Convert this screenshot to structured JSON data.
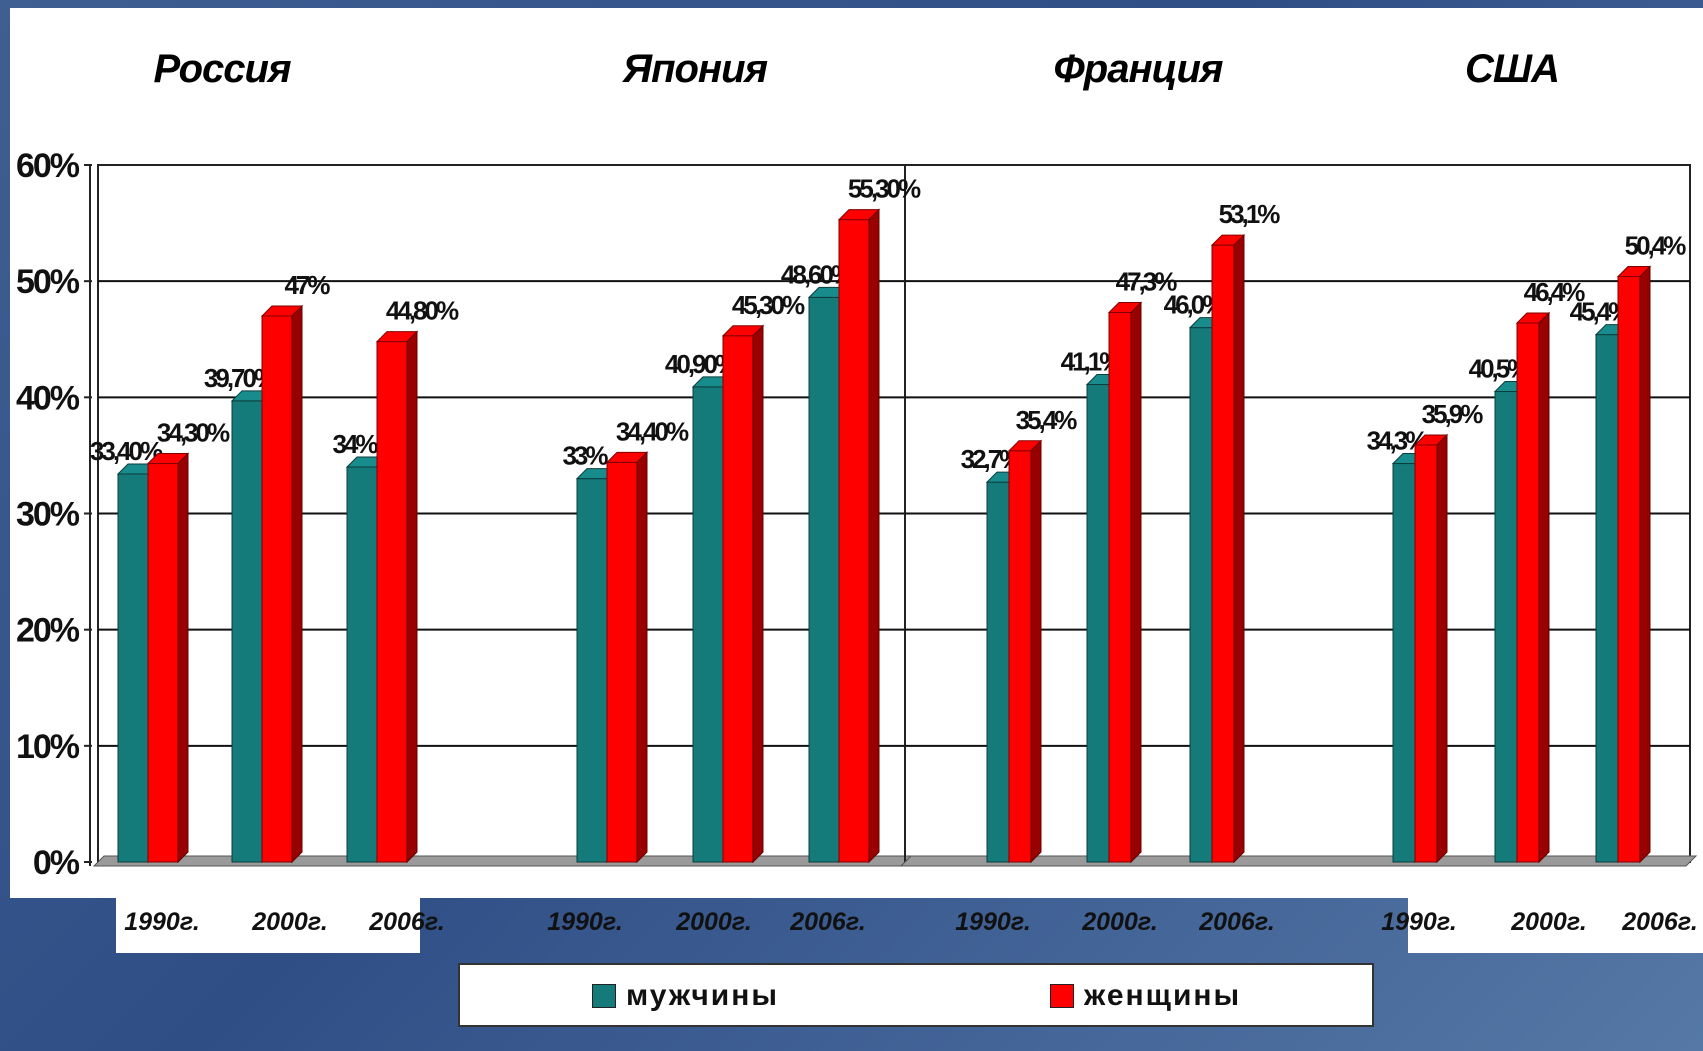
{
  "chart_data": {
    "type": "bar",
    "y_ticks": [
      "0%",
      "10%",
      "20%",
      "30%",
      "40%",
      "50%",
      "60%"
    ],
    "ylim": [
      0,
      60
    ],
    "grid": true,
    "legend_position": "bottom-center",
    "colors": {
      "men": "#157a7a",
      "women": "#ff0000"
    },
    "series_names": {
      "men": "мужчины",
      "women": "женщины"
    },
    "panels": [
      {
        "title": "Россия",
        "categories": [
          "1990г.",
          "2000г.",
          "2006г."
        ],
        "men": [
          33.4,
          39.7,
          34
        ],
        "women": [
          34.3,
          47,
          44.8
        ],
        "men_labels": [
          "33,40%",
          "39,70%",
          "34%"
        ],
        "women_labels": [
          "34,30%",
          "47%",
          "44,80%"
        ]
      },
      {
        "title": "Япония",
        "categories": [
          "1990г.",
          "2000г.",
          "2006г."
        ],
        "men": [
          33,
          40.9,
          48.6
        ],
        "women": [
          34.4,
          45.3,
          55.3
        ],
        "men_labels": [
          "33%",
          "40,90%",
          "48,60%"
        ],
        "women_labels": [
          "34,40%",
          "45,30%",
          "55,30%"
        ]
      },
      {
        "title": "Франция",
        "categories": [
          "1990г.",
          "2000г.",
          "2006г."
        ],
        "men": [
          32.7,
          41.1,
          46.0
        ],
        "women": [
          35.4,
          47.3,
          53.1
        ],
        "men_labels": [
          "32,7%",
          "41,1%",
          "46,0%"
        ],
        "women_labels": [
          "35,4%",
          "47,3%",
          "53,1%"
        ]
      },
      {
        "title": "США",
        "categories": [
          "1990г.",
          "2000г.",
          "2006г."
        ],
        "men": [
          34.3,
          40.5,
          45.4
        ],
        "women": [
          35.9,
          46.4,
          50.4
        ],
        "men_labels": [
          "34,3%",
          "40,5%",
          "45,4%"
        ],
        "women_labels": [
          "35,9%",
          "46,4%",
          "50,4%"
        ]
      }
    ]
  }
}
